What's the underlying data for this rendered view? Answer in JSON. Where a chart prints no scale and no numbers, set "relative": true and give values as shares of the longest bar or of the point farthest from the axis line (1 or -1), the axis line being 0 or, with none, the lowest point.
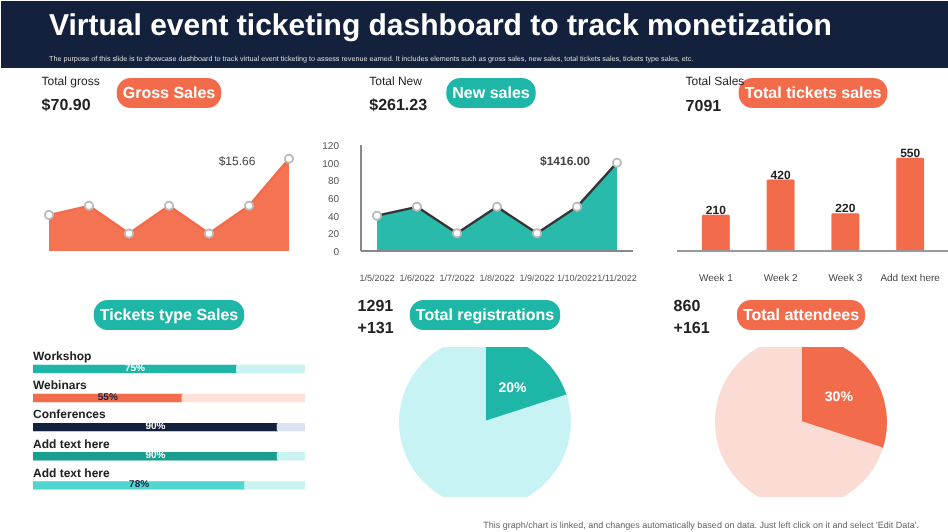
{
  "chart_data": [
    {
      "type": "other",
      "title": "Virtual event ticketing dashboard to track monetization",
      "subtitle": "The purpose of this slide is to showcase dashboard to track virtual event ticketing to assess revenue earned. It includes elements such as gross sales, new sales, total tickets sales, tickets type sales, etc.",
      "annotations": [
        "This graph/chart is linked, and changes automatically based on data. Just left click on it and select 'Edit Data'."
      ]
    },
    {
      "type": "area",
      "title": "Gross Sales",
      "relative": true,
      "categories": [
        null,
        null,
        null,
        null,
        null,
        null,
        null
      ],
      "marker": "circle",
      "series": [
        {
          "color": "#f26b4a",
          "values": [
            0.39,
            0.49,
            0.19,
            0.49,
            0.19,
            0.49,
            1.0
          ]
        }
      ],
      "annotations": [
        "Total gross",
        "$70.90",
        "$15.66"
      ]
    },
    {
      "type": "area",
      "title": "New sales",
      "categories": [
        "1/5/2022",
        "1/6/2022",
        "1/7/2022",
        "1/8/2022",
        "1/9/2022",
        "1/10/2022",
        "1/11/2022"
      ],
      "marker": "circle",
      "ylim": [
        0,
        120
      ],
      "yticks": [
        0,
        20,
        40,
        60,
        80,
        100,
        120
      ],
      "series": [
        {
          "color": "#1eb6a6",
          "values": [
            40,
            50,
            20,
            50,
            20,
            50,
            100
          ]
        }
      ],
      "annotations": [
        "Total New",
        "$261.23",
        "$1416.00"
      ]
    },
    {
      "type": "bar",
      "title": "Total tickets sales",
      "categories": [
        "Week 1",
        "Week 2",
        "Week 3",
        "Add text here"
      ],
      "data_labels": true,
      "series": [
        {
          "color": "#f26b4a",
          "values": [
            210,
            420,
            220,
            550
          ]
        }
      ],
      "annotations": [
        "Total Sales",
        "7091"
      ]
    },
    {
      "type": "bar",
      "title": "Tickets type Sales",
      "orientation": "horizontal",
      "stacked": true,
      "categories": [
        "Workshop",
        "Webinars",
        "Conferences",
        "Add text here",
        "Add text here"
      ],
      "xlim": [
        0,
        100
      ],
      "tick_labels": false,
      "series": [
        {
          "colors": [
            "#1eb6a6",
            "#f26b4a",
            "#14213d",
            "#1a9e8f",
            "#4fd6cf"
          ],
          "values": [
            75,
            55,
            90,
            90,
            78
          ],
          "value_labels": [
            "75%",
            "55%",
            "90%",
            "90%",
            "78%"
          ]
        },
        {
          "colors": [
            "#c9f3f0",
            "#fde0d8",
            "#dbe3f0",
            "#c9f3f0",
            "#c9f3f0"
          ],
          "values": [
            25,
            45,
            10,
            10,
            22
          ]
        }
      ]
    },
    {
      "type": "pie",
      "title": "Total registrations",
      "categories": [
        null,
        null
      ],
      "values": [
        20,
        80
      ],
      "colors": [
        "#1eb6a6",
        "#c8f3f4"
      ],
      "value_labels": [
        "20%",
        null
      ],
      "annotations": [
        "1291",
        "+131"
      ]
    },
    {
      "type": "pie",
      "title": "Total attendees",
      "categories": [
        null,
        null
      ],
      "values": [
        30,
        70
      ],
      "colors": [
        "#f26b4a",
        "#fbdcd5"
      ],
      "value_labels": [
        "30%",
        null
      ],
      "annotations": [
        "860",
        "+161"
      ]
    }
  ]
}
